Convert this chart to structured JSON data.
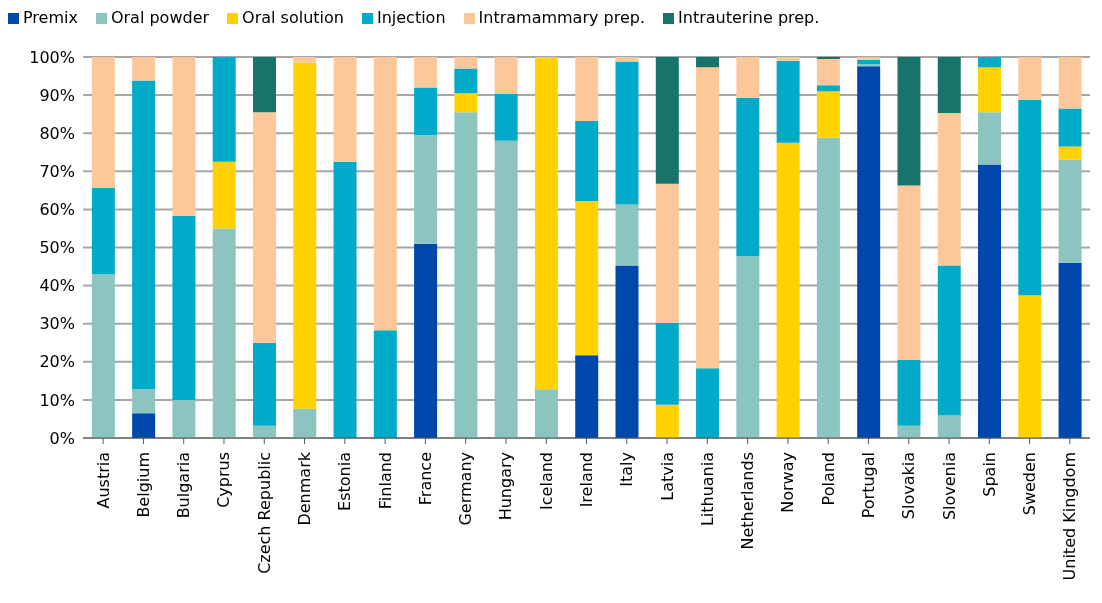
{
  "chart_data": {
    "type": "bar",
    "stacked": true,
    "categories": [
      "Austria",
      "Belgium",
      "Bulgaria",
      "Cyprus",
      "Czech Republic",
      "Denmark",
      "Estonia",
      "Finland",
      "France",
      "Germany",
      "Hungary",
      "Iceland",
      "Ireland",
      "Italy",
      "Latvia",
      "Lithuania",
      "Netherlands",
      "Norway",
      "Poland",
      "Portugal",
      "Slovakia",
      "Slovenia",
      "Spain",
      "Sweden",
      "United Kingdom"
    ],
    "series": [
      {
        "name": "Premix",
        "color": "#0047ab",
        "values": [
          0,
          6.5,
          0,
          0,
          0,
          0,
          0,
          0,
          51,
          0,
          0,
          0,
          21.7,
          45.3,
          0,
          0,
          0,
          0,
          0,
          97.6,
          0,
          0,
          71.8,
          0,
          46
        ]
      },
      {
        "name": "Oral powder",
        "color": "#8cc5bf",
        "values": [
          43,
          6.3,
          10,
          55,
          3.2,
          7.7,
          0,
          0,
          28.5,
          85.5,
          78,
          12.8,
          0,
          16,
          0,
          0,
          47.8,
          0,
          78.8,
          0.5,
          3.2,
          6,
          13.7,
          0,
          27
        ]
      },
      {
        "name": "Oral solution",
        "color": "#ffd200",
        "values": [
          0,
          0,
          0,
          17.5,
          0,
          90.8,
          0,
          0,
          0,
          5,
          0,
          87,
          40.5,
          0,
          8.7,
          0,
          0,
          77.5,
          12.2,
          0,
          0,
          0,
          11.8,
          37.5,
          3.5
        ]
      },
      {
        "name": "Injection",
        "color": "#00aac8",
        "values": [
          22.7,
          81,
          48.3,
          27.5,
          21.8,
          0,
          72.5,
          28.3,
          12.5,
          6.5,
          12.3,
          0,
          21,
          37.5,
          21.5,
          18.3,
          41.5,
          21.5,
          1.6,
          1.2,
          17.3,
          39.3,
          2.7,
          51.3,
          10
        ]
      },
      {
        "name": "Intramammary prep.",
        "color": "#fdc899",
        "values": [
          34.3,
          6.2,
          41.7,
          0,
          60.5,
          1.5,
          27.5,
          71.7,
          8,
          3,
          9.7,
          0.2,
          16.8,
          1.2,
          36.5,
          79,
          10.7,
          1,
          6.9,
          0.7,
          45.8,
          40,
          0,
          11.2,
          13.5
        ]
      },
      {
        "name": "Intrauterine prep.",
        "color": "#18736a",
        "values": [
          0,
          0,
          0,
          0,
          14.5,
          0,
          0,
          0,
          0,
          0,
          0,
          0,
          0,
          0,
          33.3,
          2.7,
          0,
          0,
          0.5,
          0,
          33.7,
          14.7,
          0,
          0,
          0
        ]
      }
    ],
    "ylim": [
      0,
      100
    ],
    "yticks": [
      {
        "value": 0,
        "label": "0%"
      },
      {
        "value": 10,
        "label": "10%"
      },
      {
        "value": 20,
        "label": "20%"
      },
      {
        "value": 30,
        "label": "30%"
      },
      {
        "value": 40,
        "label": "40%"
      },
      {
        "value": 50,
        "label": "50%"
      },
      {
        "value": 60,
        "label": "60%"
      },
      {
        "value": 70,
        "label": "70%"
      },
      {
        "value": 80,
        "label": "80%"
      },
      {
        "value": 90,
        "label": "90%"
      },
      {
        "value": 100,
        "label": "100%"
      }
    ],
    "grid": "y",
    "legend": "top left"
  }
}
